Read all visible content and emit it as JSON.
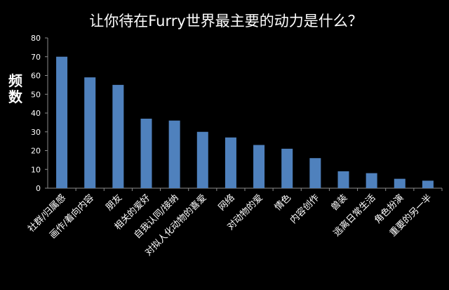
{
  "chart_data": {
    "type": "bar",
    "title": "让你待在Furry世界最主要的动力是什么？",
    "xlabel": "",
    "ylabel": "频数",
    "ylim": [
      0,
      80
    ],
    "yticks": [
      0,
      10,
      20,
      30,
      40,
      50,
      60,
      70,
      80
    ],
    "grid": false,
    "legend": "none",
    "bar_color": "#4F81BD",
    "background": "#000000",
    "text_color": "#ffffff",
    "categories": [
      "社群/归属感",
      "画作/着向内容",
      "朋友",
      "相关的爱好",
      "自我认同/接纳",
      "对拟人化动物的喜爱",
      "网络",
      "对动物的爱",
      "情色",
      "内容创作",
      "兽装",
      "逃离日常生活",
      "角色扮演",
      "重要的另一半"
    ],
    "values": [
      70,
      59,
      55,
      37,
      36,
      30,
      27,
      23,
      21,
      16,
      9,
      8,
      5,
      4
    ]
  }
}
